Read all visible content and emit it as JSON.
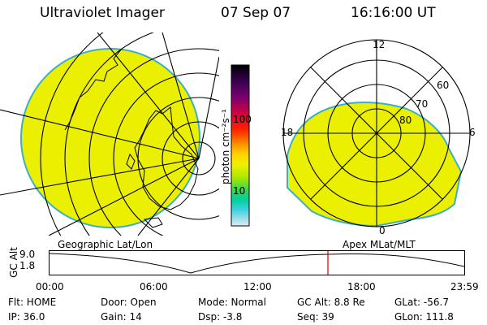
{
  "header": {
    "instrument": "Ultraviolet Imager",
    "date": "07 Sep 07",
    "time": "16:16:00 UT"
  },
  "colorbar": {
    "unit_label": "photon cm⁻²s⁻¹",
    "ticks": [
      "100",
      "10"
    ],
    "colors": [
      "#000000",
      "#3a0050",
      "#6a0070",
      "#b00060",
      "#e00000",
      "#ff3000",
      "#ff8a00",
      "#ffc000",
      "#f2f000",
      "#d8f000",
      "#a0e800",
      "#40e040",
      "#00d890",
      "#00c8d8",
      "#60d8f0",
      "#b0e0f0",
      "#e0e8f0"
    ]
  },
  "panels": {
    "left_caption": "Geographic Lat/Lon",
    "right_caption": "Apex MLat/MLT",
    "right_mlt_labels": [
      "12",
      "18",
      "6",
      "0"
    ],
    "right_mlat_labels": [
      "60",
      "70",
      "80"
    ],
    "image_fill": "#eaf000",
    "limb_color": "#3ab0c8"
  },
  "altitude_plot": {
    "ylabel": "GC Alt",
    "y_ticks": [
      "9.0",
      "1.8"
    ],
    "x_ticks": [
      "00:00",
      "06:00",
      "12:00",
      "18:00",
      "23:59"
    ],
    "current_time_marker_color": "#d00000"
  },
  "info": {
    "flt": "Flt: HOME",
    "ip": "IP: 36.0",
    "door": "Door: Open",
    "gain": "Gain: 14",
    "mode": "Mode: Normal",
    "dsp": "Dsp:    -3.8",
    "gcalt": "GC Alt: 8.8 Re",
    "seq": "Seq: 39",
    "glat": "GLat: -56.7",
    "glon": "GLon: 111.8"
  }
}
